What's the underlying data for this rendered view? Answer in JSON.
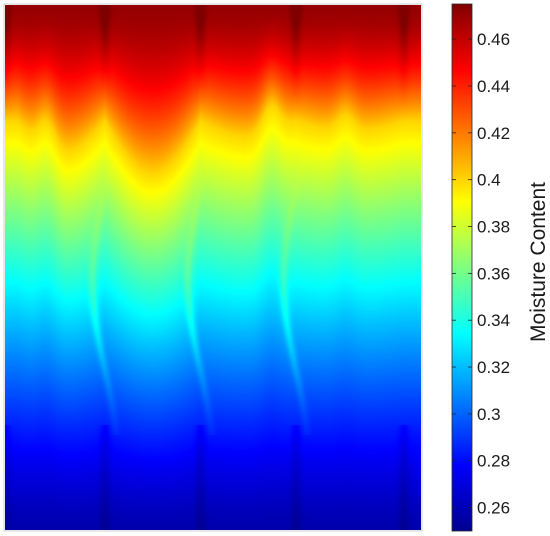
{
  "chart_data": {
    "type": "heatmap",
    "title": "",
    "xlabel": "",
    "ylabel": "",
    "colorbar": {
      "label": "Moisture Content",
      "range": [
        0.25,
        0.475
      ],
      "ticks": [
        "0.26",
        "0.28",
        "0.3",
        "0.32",
        "0.34",
        "0.36",
        "0.38",
        "0.4",
        "0.42",
        "0.44",
        "0.46"
      ],
      "colormap": "jet"
    },
    "field_description": {
      "top_value": 0.47,
      "bottom_value": 0.26,
      "interface_columns": [
        0.0,
        0.24,
        0.47,
        0.7,
        0.96
      ],
      "grid": false
    },
    "colors": {
      "jet": [
        "#00008f",
        "#0000ff",
        "#00ffff",
        "#ffff00",
        "#ff0000",
        "#800000"
      ]
    }
  }
}
